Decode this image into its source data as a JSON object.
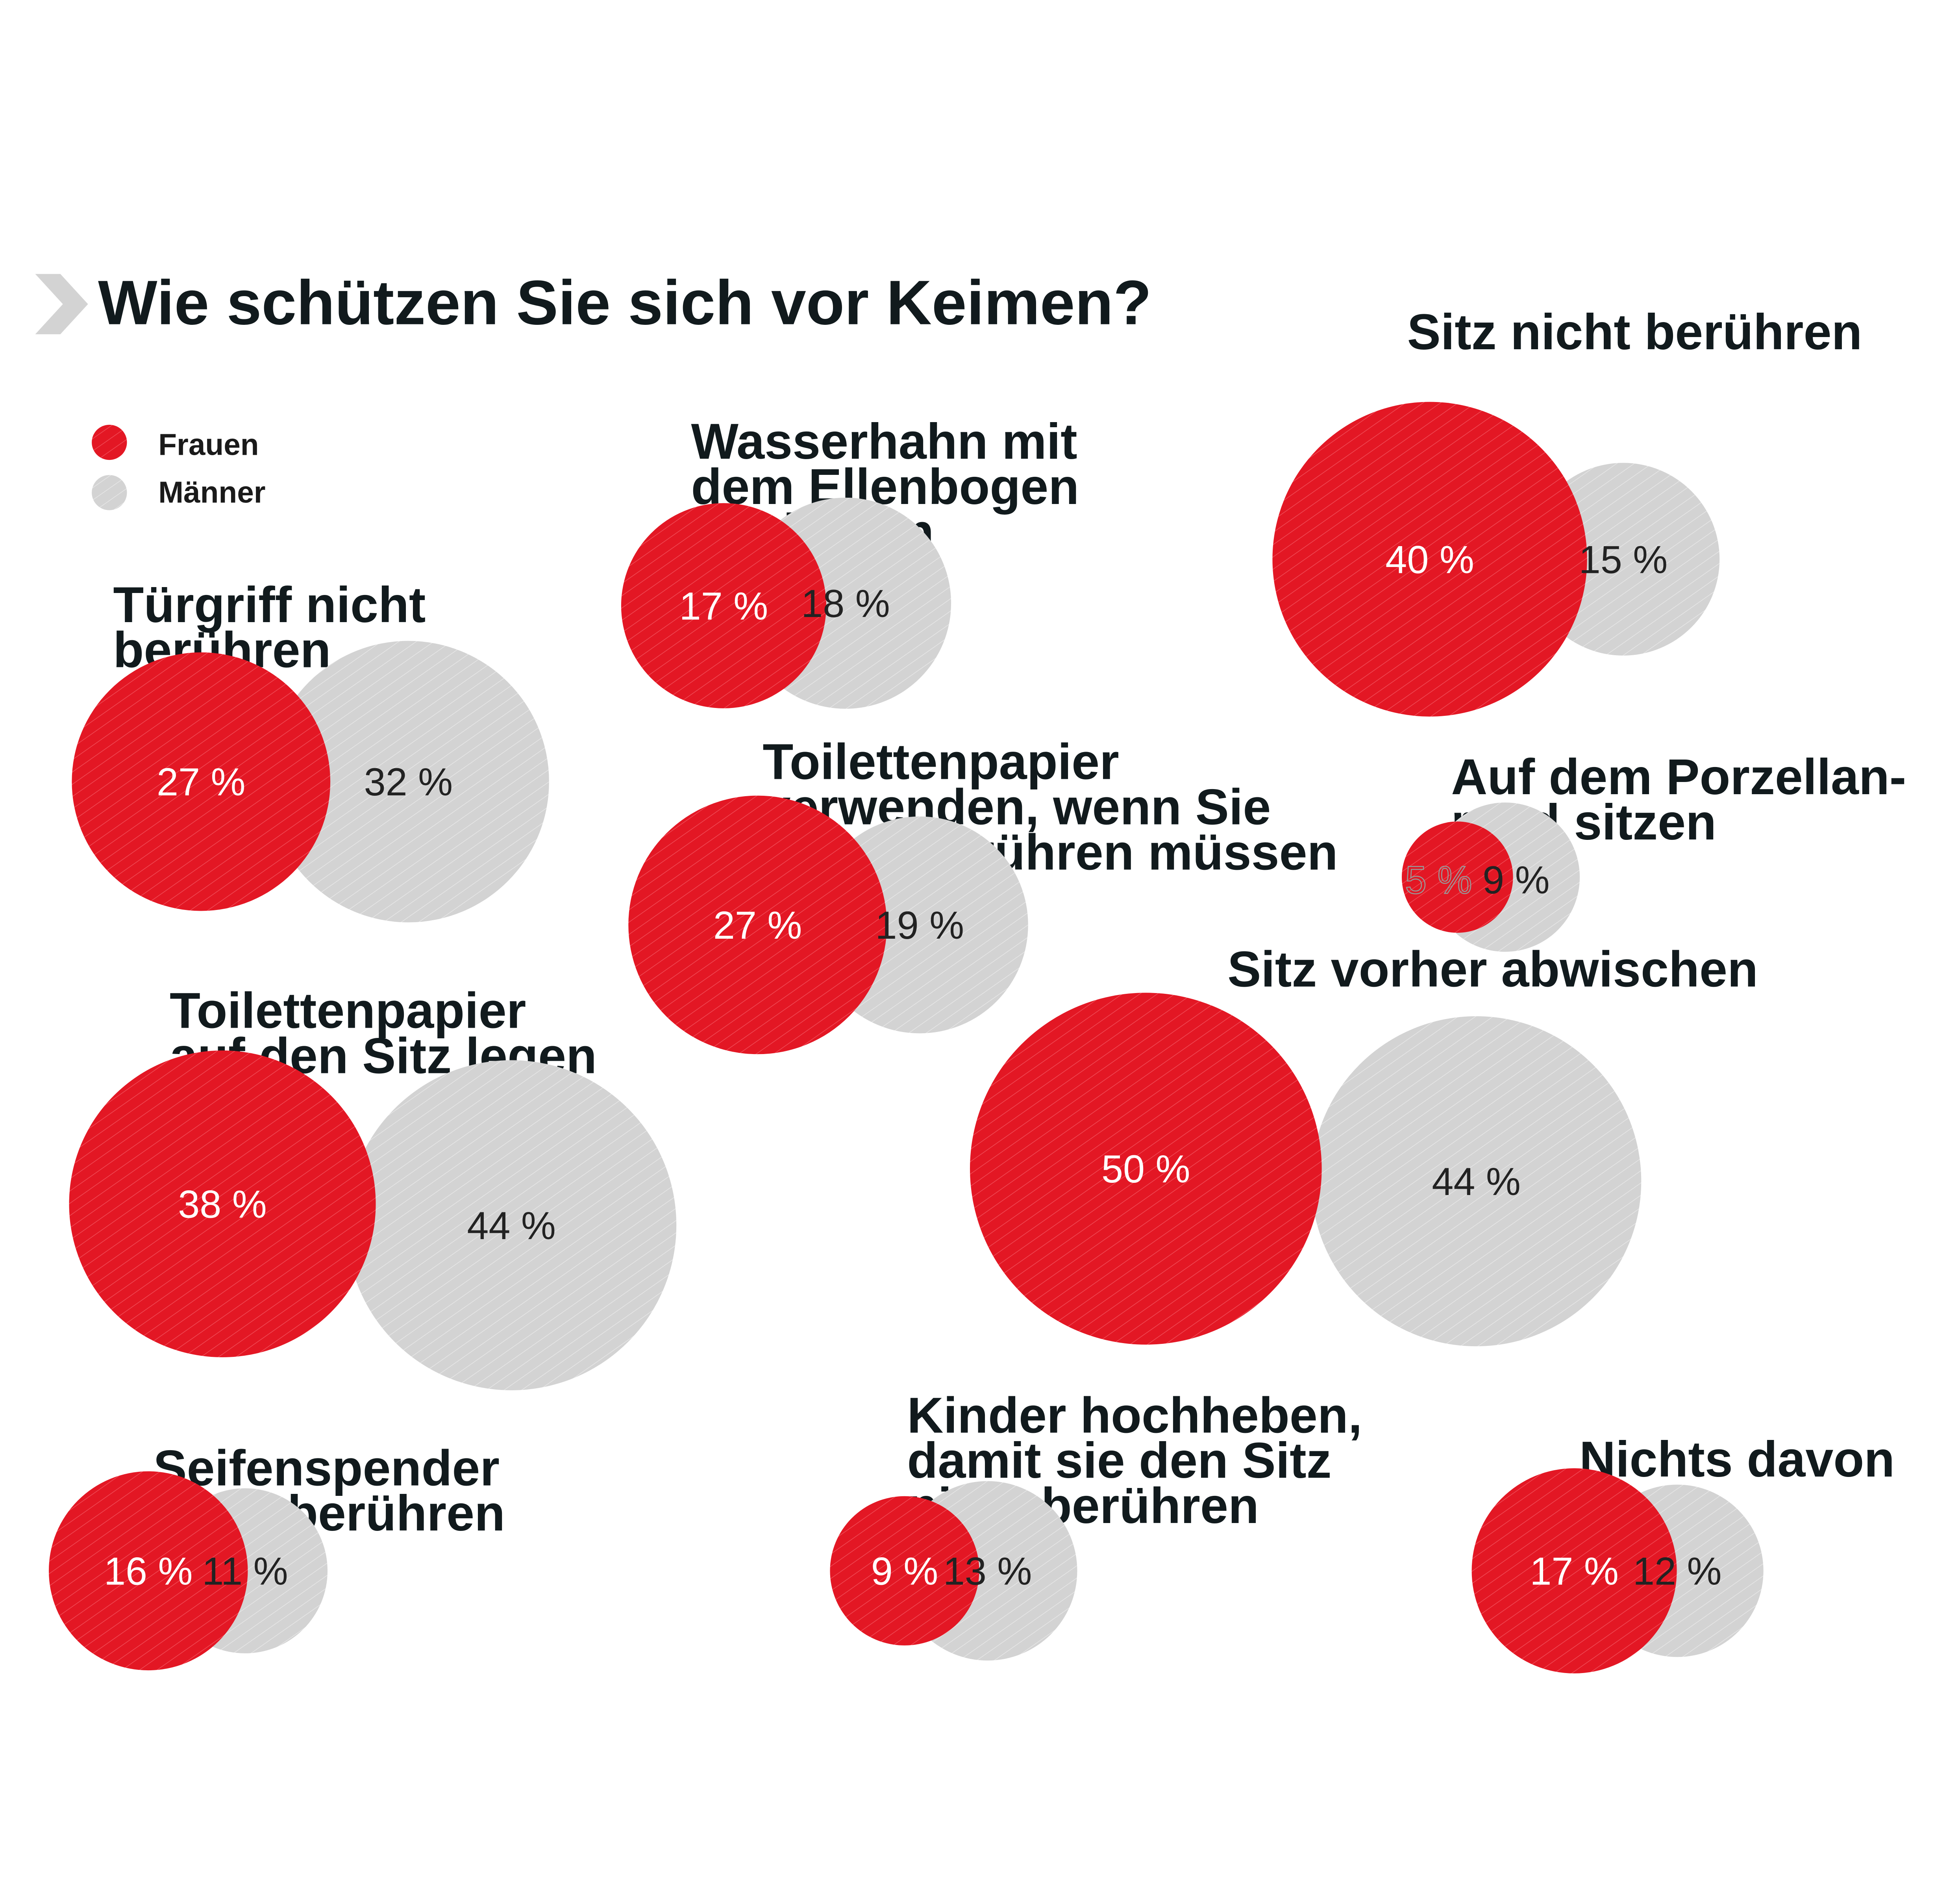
{
  "chart_data": {
    "type": "bubble",
    "title": "Wie schützen Sie sich vor Keimen?",
    "legend": {
      "placement": "top-left",
      "entries": [
        {
          "name": "Frauen",
          "color": "#e31724"
        },
        {
          "name": "Männer",
          "color": "#d3d3d3"
        }
      ]
    },
    "unit": "%",
    "series": [
      {
        "name": "Frauen",
        "color": "#e31724"
      },
      {
        "name": "Männer",
        "color": "#d3d3d3"
      }
    ],
    "categories": [
      {
        "label": [
          "Türgriff nicht",
          "berühren"
        ],
        "frauen": 27,
        "maenner": 32
      },
      {
        "label": [
          "Wasserhahn mit",
          "dem Ellenbogen",
          "aufdrehen"
        ],
        "frauen": 17,
        "maenner": 18
      },
      {
        "label": [
          "Sitz nicht berühren"
        ],
        "frauen": 40,
        "maenner": 15
      },
      {
        "label": [
          "Toilettenpapier",
          "verwenden, wenn Sie",
          "etwas berühren müssen"
        ],
        "frauen": 27,
        "maenner": 19
      },
      {
        "label": [
          "Auf dem Porzellan-",
          "rand sitzen"
        ],
        "frauen": 5,
        "maenner": 9
      },
      {
        "label": [
          "Sitz vorher abwischen"
        ],
        "frauen": 50,
        "maenner": 44
      },
      {
        "label": [
          "Toilettenpapier",
          "auf den Sitz legen"
        ],
        "frauen": 38,
        "maenner": 44
      },
      {
        "label": [
          "Seifenspender",
          "nicht berühren"
        ],
        "frauen": 16,
        "maenner": 11
      },
      {
        "label": [
          "Kinder hochheben,",
          "damit sie den Sitz",
          "nicht berühren"
        ],
        "frauen": 9,
        "maenner": 13
      },
      {
        "label": [
          "Nichts davon"
        ],
        "frauen": 17,
        "maenner": 12
      }
    ]
  }
}
